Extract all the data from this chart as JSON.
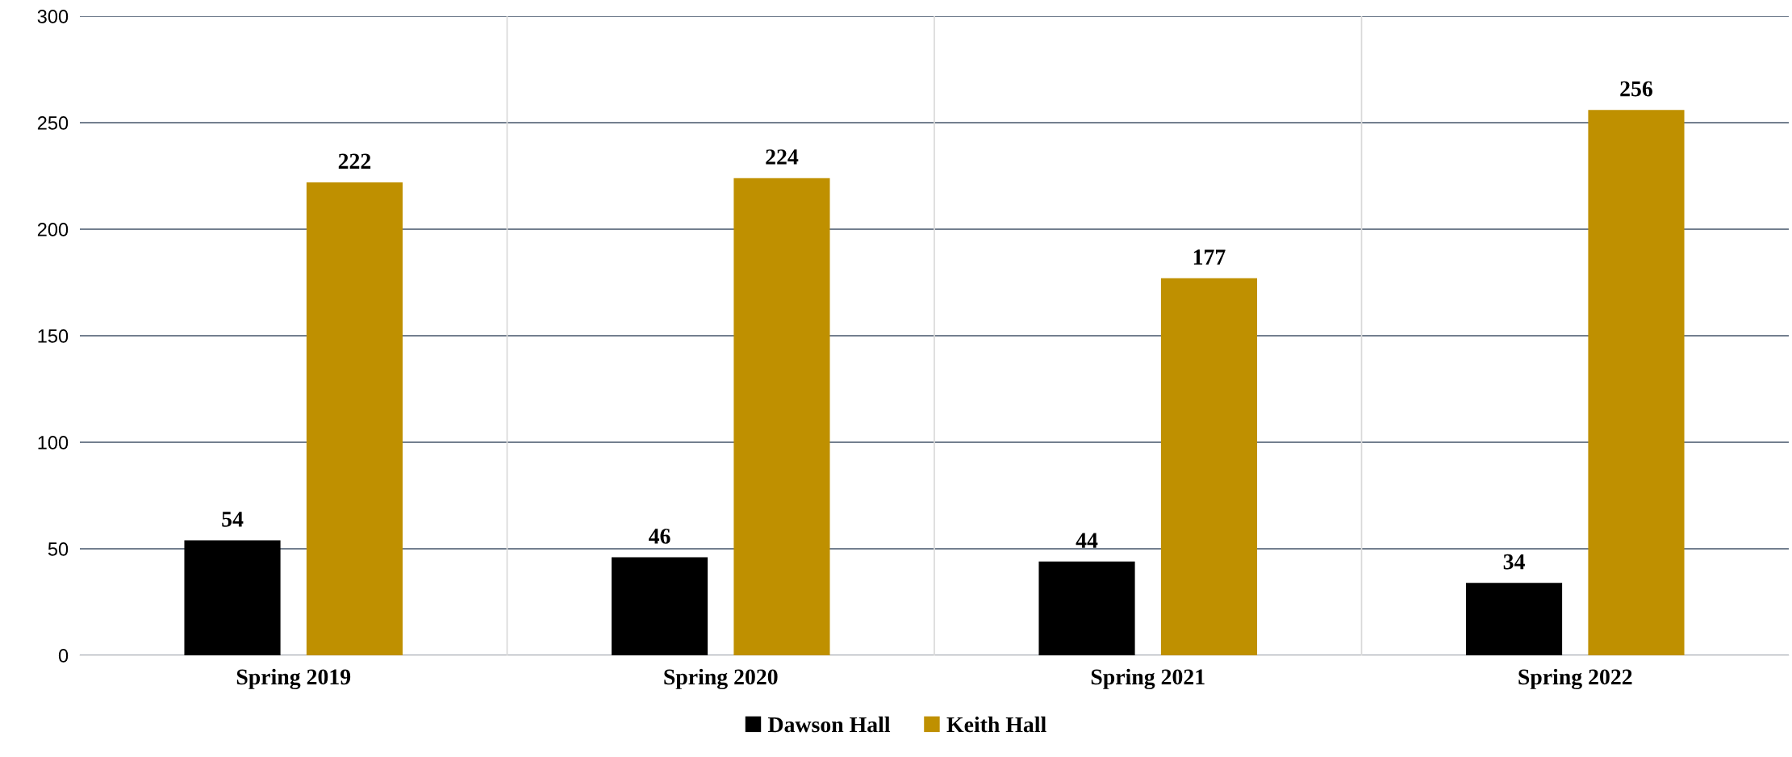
{
  "chart_data": {
    "type": "bar",
    "categories": [
      "Spring 2019",
      "Spring 2020",
      "Spring 2021",
      "Spring 2022"
    ],
    "series": [
      {
        "name": "Dawson Hall",
        "color": "#000000",
        "values": [
          54,
          46,
          44,
          34
        ]
      },
      {
        "name": "Keith Hall",
        "color": "#bf9000",
        "values": [
          222,
          224,
          177,
          256
        ]
      }
    ],
    "ylim": [
      0,
      300
    ],
    "yticks": [
      0,
      50,
      100,
      150,
      200,
      250,
      300
    ],
    "grid": true,
    "legend": "bottom",
    "data_labels": true
  }
}
